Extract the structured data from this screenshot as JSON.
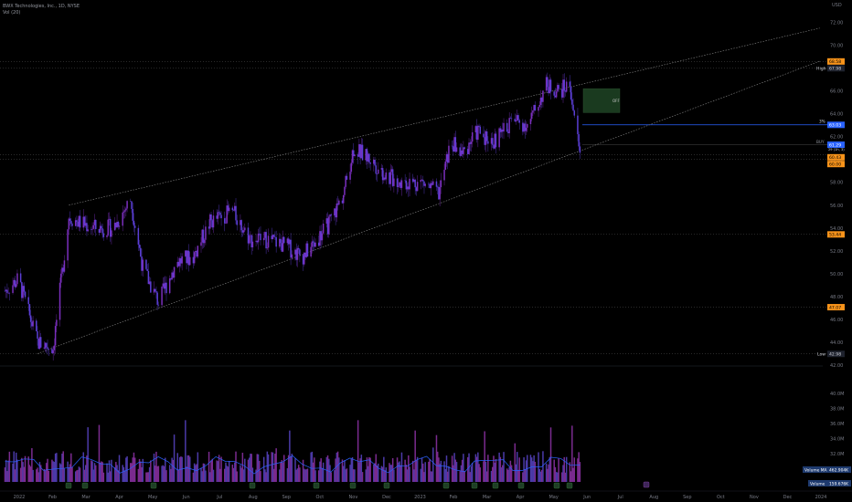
{
  "header": {
    "title": "BWX Technologies, Inc., 1D, NYSE",
    "volume_indicator": "Vol (20)"
  },
  "price_axis": {
    "currency": "USD",
    "ticks": [
      "72.00",
      "70.00",
      "68.00",
      "66.00",
      "64.00",
      "62.00",
      "60.00",
      "58.00",
      "56.00",
      "54.00",
      "52.00",
      "50.00",
      "48.00",
      "46.00",
      "44.00",
      "42.00"
    ]
  },
  "volume_axis": {
    "ticks": [
      "40.0M",
      "38.0M",
      "36.0M",
      "34.0M",
      "32.0M",
      "30.0M"
    ]
  },
  "time_axis": {
    "ticks": [
      "2022",
      "Feb",
      "Mar",
      "Apr",
      "May",
      "Jun",
      "Jul",
      "Aug",
      "Sep",
      "Oct",
      "Nov",
      "Dec",
      "2023",
      "Feb",
      "Mar",
      "Apr",
      "May",
      "Jun",
      "Jul",
      "Aug",
      "Sep",
      "Oct",
      "Nov",
      "Dec",
      "2024"
    ]
  },
  "labels": {
    "high_label": "High",
    "high_value": "67.98",
    "low_label": "Low",
    "low_value": "42.98",
    "level_top": "68.58",
    "level_target": "63.03",
    "level_buy": "61.29",
    "level_buy_sub": "29 (1h, 3)",
    "level_a": "60.43",
    "level_b": "60.00",
    "level_mid": "53.44",
    "level_low": "47.07",
    "target_pct": "3%",
    "buy_text": "BUY",
    "off_text": "OFF",
    "volume_ma_label": "Volume MA",
    "volume_ma_value": "462.904K",
    "volume_label": "Volume",
    "volume_value": "159.676K"
  },
  "colors": {
    "background": "#000000",
    "up_candle": "#7b2fbe",
    "down_candle": "#5b3fd6",
    "volume_up": "#4b3aa8",
    "volume_down": "#7a2b8f",
    "volume_ma_line": "#2962ff",
    "channel_line": "#8a8a8a",
    "level_orange": "#f7931a",
    "level_blue": "#2962ff",
    "target_box": "#1a3a1f"
  },
  "chart_data": {
    "type": "candlestick",
    "title": "BWX Technologies, Inc., 1D, NYSE",
    "x_range": [
      "2022-01",
      "2024-01"
    ],
    "ylim": [
      42,
      72
    ],
    "series": [
      {
        "name": "price_close_approx",
        "x": [
          "2022-01-03",
          "2022-01-15",
          "2022-02-01",
          "2022-02-15",
          "2022-03-01",
          "2022-03-10",
          "2022-03-25",
          "2022-04-10",
          "2022-04-25",
          "2022-05-06",
          "2022-05-20",
          "2022-06-05",
          "2022-06-20",
          "2022-07-05",
          "2022-07-25",
          "2022-08-10",
          "2022-08-25",
          "2022-09-10",
          "2022-09-25",
          "2022-10-05",
          "2022-10-20",
          "2022-11-01",
          "2022-11-10",
          "2022-11-25",
          "2022-12-10",
          "2022-12-25",
          "2023-01-10",
          "2023-01-25",
          "2023-02-05",
          "2023-02-15",
          "2023-03-01",
          "2023-03-15",
          "2023-04-01",
          "2023-04-15",
          "2023-05-01",
          "2023-05-12",
          "2023-05-22",
          "2023-05-31"
        ],
        "values": [
          48.5,
          49.5,
          44.0,
          43.5,
          55.0,
          54.5,
          54.0,
          54.0,
          56.5,
          50.5,
          47.5,
          51.0,
          51.5,
          54.5,
          55.5,
          53.0,
          53.0,
          52.5,
          51.5,
          52.5,
          54.5,
          57.0,
          61.0,
          60.0,
          58.5,
          58.0,
          58.0,
          57.0,
          61.5,
          60.5,
          62.5,
          61.5,
          63.5,
          63.0,
          66.5,
          66.0,
          66.5,
          60.4
        ]
      }
    ],
    "volume_ma_value": "462.904K",
    "volume_value": "159.676K",
    "high": 67.98,
    "low": 42.98,
    "horizontal_levels": [
      68.58,
      63.03,
      61.29,
      60.43,
      60.0,
      53.44,
      47.07
    ],
    "trend_channel": {
      "upper": [
        {
          "x": "2022-03-01",
          "y": 56.0
        },
        {
          "x": "2023-12-31",
          "y": 71.5
        }
      ],
      "lower": [
        {
          "x": "2022-02-01",
          "y": 43.0
        },
        {
          "x": "2023-12-31",
          "y": 68.6
        }
      ]
    }
  }
}
